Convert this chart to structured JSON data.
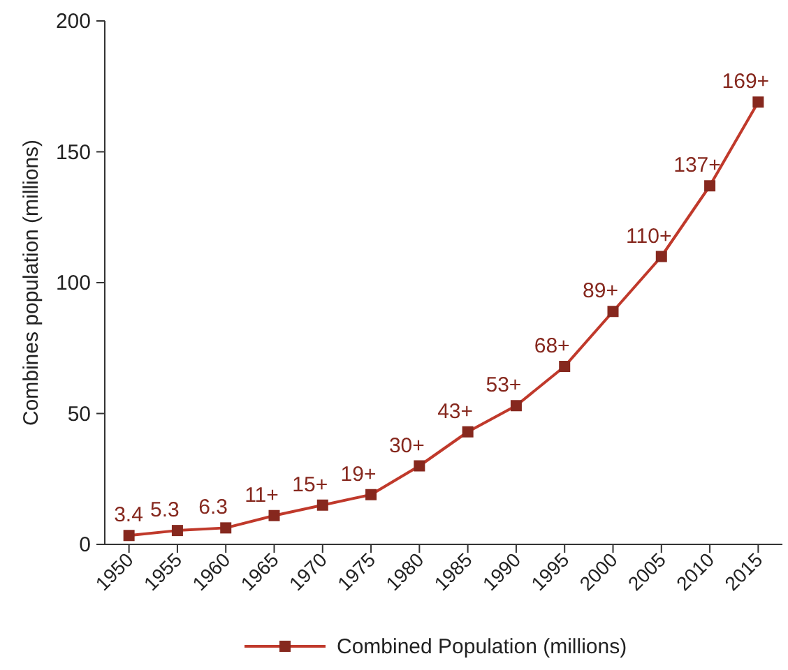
{
  "chart_data": {
    "type": "line",
    "ylabel": "Combines population (millions)",
    "categories": [
      "1950",
      "1955",
      "1960",
      "1965",
      "1970",
      "1975",
      "1980",
      "1985",
      "1990",
      "1995",
      "2000",
      "2005",
      "2010",
      "2015"
    ],
    "series": [
      {
        "name": "Combined Population (millions)",
        "color": "#c0392b",
        "values": [
          3.4,
          5.3,
          6.3,
          11,
          15,
          19,
          30,
          43,
          53,
          68,
          89,
          110,
          137,
          169
        ],
        "value_labels": [
          "3.4",
          "5.3",
          "6.3",
          "11+",
          "15+",
          "19+",
          "30+",
          "43+",
          "53+",
          "68+",
          "89+",
          "110+",
          "137+",
          "169+"
        ]
      }
    ],
    "ylim": [
      0,
      200
    ],
    "yticks": [
      0,
      50,
      100,
      150,
      200
    ],
    "grid": false,
    "legend": "bottom",
    "marker": "square",
    "line_style": "solid"
  }
}
